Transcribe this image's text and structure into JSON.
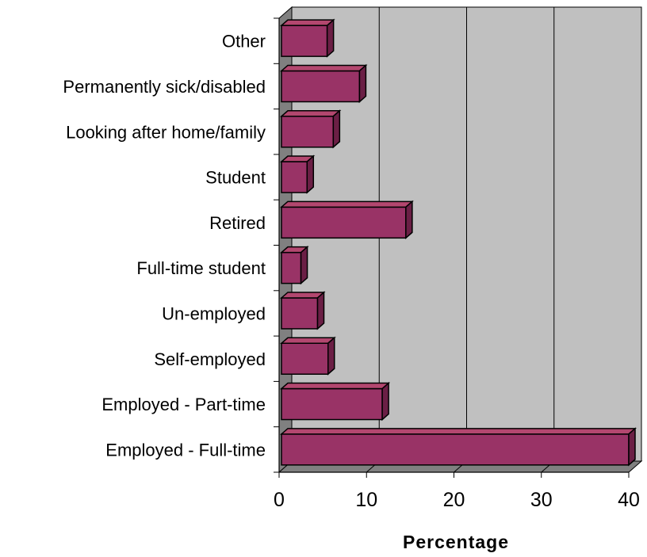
{
  "chart_data": {
    "type": "bar",
    "orientation": "horizontal",
    "style": "3d",
    "categories": [
      "Other",
      "Permanently sick/disabled",
      "Looking after home/family",
      "Student",
      "Retired",
      "Full-time student",
      "Un-employed",
      "Self-employed",
      "Employed - Part-time",
      "Employed - Full-time"
    ],
    "values": [
      5.5,
      9.2,
      6.2,
      3.2,
      14.5,
      2.5,
      4.4,
      5.6,
      11.8,
      40
    ],
    "title": "",
    "xlabel": "Percentage",
    "ylabel": "",
    "xlim": [
      0,
      40
    ],
    "xticks": [
      "0",
      "10",
      "20",
      "30",
      "40"
    ],
    "grid": "vertical",
    "legend": "none",
    "colors": {
      "bar_front": "#993366",
      "bar_top": "#b3476f",
      "bar_side": "#6b1f45",
      "bar_edge": "#000000",
      "plot_back": "#c0c0c0",
      "plot_floor": "#808080",
      "gridline": "#000000"
    }
  }
}
